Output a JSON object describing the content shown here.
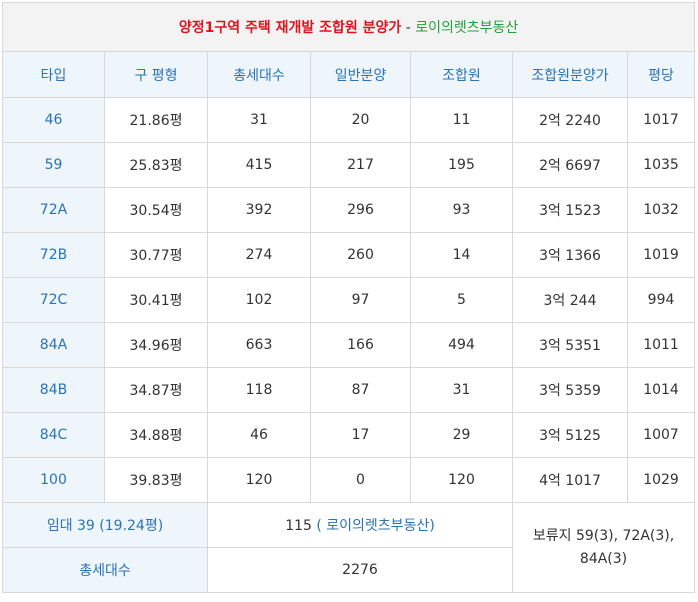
{
  "title": {
    "main": "양정1구역 주택 재개발 조합원 분양가",
    "separator": " - ",
    "source": "로이의렛츠부동산"
  },
  "headers": [
    "타입",
    "구 평형",
    "총세대수",
    "일반분양",
    "조합원",
    "조합원분양가",
    "평당"
  ],
  "rows": [
    {
      "type": "46",
      "pyeong": "21.86평",
      "total": "31",
      "general": "20",
      "member": "11",
      "price": "2억 2240",
      "per": "1017"
    },
    {
      "type": "59",
      "pyeong": "25.83평",
      "total": "415",
      "general": "217",
      "member": "195",
      "price": "2억 6697",
      "per": "1035"
    },
    {
      "type": "72A",
      "pyeong": "30.54평",
      "total": "392",
      "general": "296",
      "member": "93",
      "price": "3억 1523",
      "per": "1032"
    },
    {
      "type": "72B",
      "pyeong": "30.77평",
      "total": "274",
      "general": "260",
      "member": "14",
      "price": "3억 1366",
      "per": "1019"
    },
    {
      "type": "72C",
      "pyeong": "30.41평",
      "total": "102",
      "general": "97",
      "member": "5",
      "price": "3억 244",
      "per": "994"
    },
    {
      "type": "84A",
      "pyeong": "34.96평",
      "total": "663",
      "general": "166",
      "member": "494",
      "price": "3억 5351",
      "per": "1011"
    },
    {
      "type": "84B",
      "pyeong": "34.87평",
      "total": "118",
      "general": "87",
      "member": "31",
      "price": "3억 5359",
      "per": "1014"
    },
    {
      "type": "84C",
      "pyeong": "34.88평",
      "total": "46",
      "general": "17",
      "member": "29",
      "price": "3억 5125",
      "per": "1007"
    },
    {
      "type": "100",
      "pyeong": "39.83평",
      "total": "120",
      "general": "0",
      "member": "120",
      "price": "4억 1017",
      "per": "1029"
    }
  ],
  "footer": {
    "rental_label": "임대 39 (19.24평)",
    "rental_value": "115",
    "rental_link": "( 로이의렛츠부동산)",
    "reserve_line1": "보류지 59(3), 72A(3),",
    "reserve_line2": "84A(3)",
    "total_label": "총세대수",
    "total_value": "2276"
  }
}
